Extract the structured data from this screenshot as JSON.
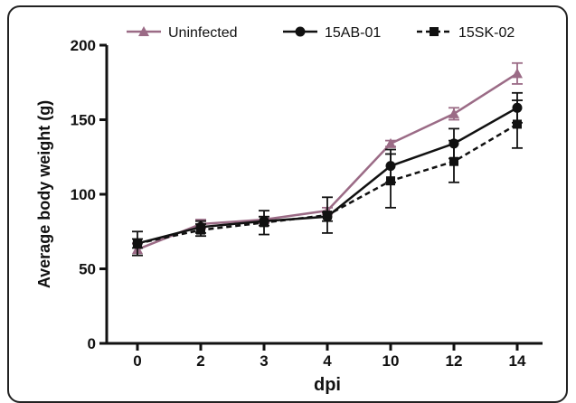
{
  "chart_data": {
    "type": "line",
    "title": "",
    "xlabel": "dpi",
    "ylabel": "Average body weight (g)",
    "categories": [
      "0",
      "2",
      "3",
      "4",
      "10",
      "12",
      "14"
    ],
    "ylim": [
      0,
      200
    ],
    "yticks": [
      "0",
      "50",
      "100",
      "150",
      "200"
    ],
    "grid": false,
    "legend_position": "top",
    "series": [
      {
        "name": "Uninfected",
        "marker": "triangle",
        "line_style": "solid",
        "color": "#9b6b86",
        "values": [
          63,
          80,
          83,
          89,
          134,
          154,
          181
        ],
        "error": [
          4,
          3,
          2,
          2,
          2,
          4,
          7
        ]
      },
      {
        "name": "15AB-01",
        "marker": "circle",
        "line_style": "solid",
        "color": "#111111",
        "values": [
          67,
          78,
          82,
          85,
          119,
          134,
          158
        ],
        "error": [
          3,
          4,
          3,
          3,
          11,
          10,
          10
        ]
      },
      {
        "name": "15SK-02",
        "marker": "square",
        "line_style": "dashed",
        "color": "#111111",
        "values": [
          67,
          76,
          81,
          86,
          109,
          122,
          147
        ],
        "error": [
          8,
          4,
          8,
          12,
          18,
          14,
          16
        ]
      }
    ]
  }
}
